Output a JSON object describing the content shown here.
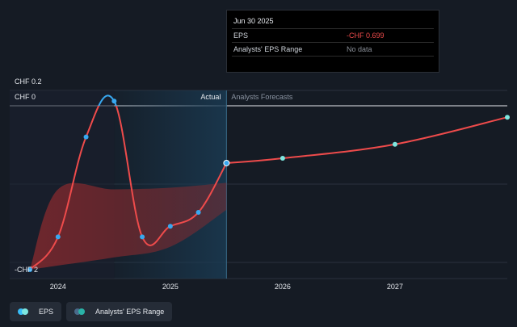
{
  "tooltip": {
    "date": "Jun 30 2025",
    "rows": [
      {
        "label": "EPS",
        "value": "-CHF 0.699"
      },
      {
        "label": "Analysts' EPS Range",
        "value": "No data"
      }
    ]
  },
  "labels": {
    "actual": "Actual",
    "forecast": "Analysts Forecasts"
  },
  "legend": {
    "eps": {
      "label": "EPS",
      "colors": [
        "#38bdf8",
        "#7ee7e0"
      ]
    },
    "range": {
      "label": "Analysts' EPS Range",
      "colors": [
        "#4a6a8a",
        "#2ab3a8"
      ]
    }
  },
  "colors": {
    "background": "#151b24",
    "eps_line": "#ee4b4b",
    "eps_line_positive": "#38a8f0",
    "range_fill": "#8b2a2e",
    "actual_shade": "#1a3a52",
    "dot_actual": "#38a8f0",
    "dot_forecast": "#7ee7e0"
  },
  "chart_data": {
    "type": "line",
    "y_tick_labels": [
      "CHF 0.2",
      "CHF 0",
      "-CHF 2"
    ],
    "y_ticks": [
      0.2,
      0,
      -2
    ],
    "x_tick_labels": [
      "2024",
      "2025",
      "2026",
      "2027"
    ],
    "x_ticks": [
      2024.0,
      2025.0,
      2026.0,
      2027.0
    ],
    "xlim": [
      2023.57,
      2028.0
    ],
    "actual_end": 2025.5,
    "series": [
      {
        "name": "EPS",
        "kind": "actual",
        "points": [
          {
            "x": 2023.75,
            "y": -2.0
          },
          {
            "x": 2024.0,
            "y": -1.6
          },
          {
            "x": 2024.25,
            "y": -0.38
          },
          {
            "x": 2024.5,
            "y": 0.06
          },
          {
            "x": 2024.75,
            "y": -1.6
          },
          {
            "x": 2025.0,
            "y": -1.47
          },
          {
            "x": 2025.25,
            "y": -1.3
          },
          {
            "x": 2025.5,
            "y": -0.699
          }
        ]
      },
      {
        "name": "EPS",
        "kind": "forecast",
        "points": [
          {
            "x": 2025.5,
            "y": -0.699
          },
          {
            "x": 2026.0,
            "y": -0.64
          },
          {
            "x": 2027.0,
            "y": -0.47
          },
          {
            "x": 2028.0,
            "y": -0.14
          }
        ]
      }
    ],
    "range_band": {
      "x": [
        2023.75,
        2024.0,
        2024.5,
        2025.0,
        2025.5
      ],
      "low": [
        -2.0,
        -1.95,
        -1.85,
        -1.72,
        -1.27
      ],
      "high": [
        -2.0,
        -1.02,
        -1.02,
        -1.0,
        -0.94
      ]
    }
  }
}
